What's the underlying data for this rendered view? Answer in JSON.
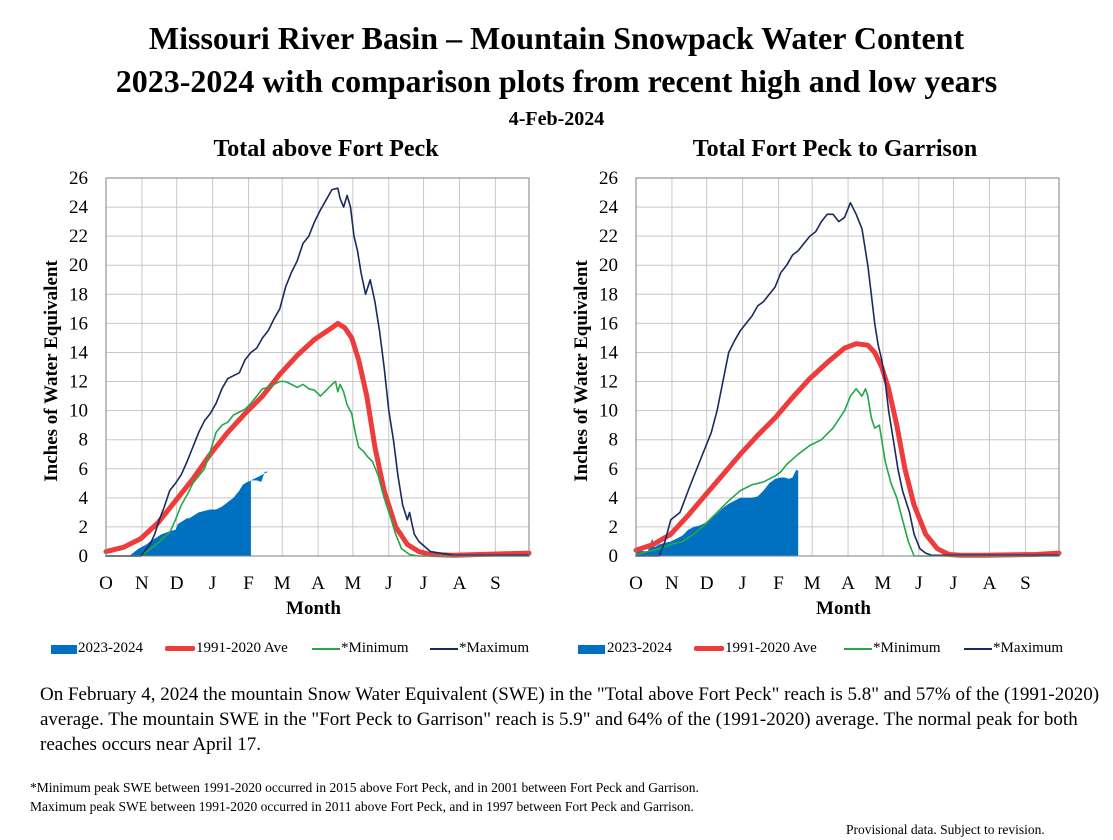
{
  "header": {
    "title_line1": "Missouri River Basin – Mountain Snowpack Water Content",
    "title_line2": "2023-2024 with comparison plots from recent high and low years",
    "date": "4-Feb-2024"
  },
  "colors": {
    "current": "#0070C0",
    "average": "#EE3B3B",
    "minimum": "#22A84A",
    "maximum": "#1A2A5E",
    "grid": "#C8C8C8"
  },
  "chart_data": [
    {
      "type": "line",
      "title": "Total above Fort Peck",
      "xlabel": "Month",
      "ylabel": "Inches of Water Equivalent",
      "x_unit": "days since Oct 1",
      "xlim": [
        0,
        365
      ],
      "ylim": [
        0,
        26
      ],
      "yticks": [
        "0",
        "2",
        "4",
        "6",
        "8",
        "10",
        "12",
        "14",
        "16",
        "18",
        "20",
        "22",
        "24",
        "26"
      ],
      "xticks": [
        "O",
        "N",
        "D",
        "J",
        "F",
        "M",
        "A",
        "M",
        "J",
        "J",
        "A",
        "S"
      ],
      "grid": true,
      "legend_position": "bottom",
      "series": [
        {
          "name": "2023-2024",
          "kind": "area",
          "x": [
            0,
            20,
            28,
            35,
            38,
            42,
            48,
            55,
            60,
            62,
            66,
            70,
            72,
            76,
            80,
            85,
            90,
            95,
            100,
            110,
            115,
            118,
            122,
            126,
            130,
            134,
            137,
            140,
            125
          ],
          "y": [
            0,
            0,
            0.5,
            0.8,
            1.0,
            1.2,
            1.5,
            1.7,
            1.8,
            2.2,
            2.4,
            2.6,
            2.6,
            2.8,
            3.0,
            3.1,
            3.2,
            3.2,
            3.4,
            4.0,
            4.5,
            4.9,
            5.1,
            5.2,
            5.2,
            5.1,
            5.8,
            5.8,
            5.2
          ]
        },
        {
          "name": "1991-2020 Ave",
          "kind": "line",
          "x": [
            0,
            15,
            30,
            45,
            60,
            75,
            90,
            105,
            120,
            135,
            150,
            165,
            180,
            195,
            200,
            206,
            212,
            218,
            225,
            232,
            240,
            250,
            260,
            270,
            280,
            300,
            365
          ],
          "y": [
            0.3,
            0.6,
            1.2,
            2.3,
            3.8,
            5.3,
            7.0,
            8.5,
            9.8,
            11.0,
            12.5,
            13.8,
            14.9,
            15.7,
            16.0,
            15.7,
            15.0,
            13.5,
            11.0,
            7.5,
            4.5,
            2.0,
            0.8,
            0.3,
            0.1,
            0.05,
            0.2
          ]
        },
        {
          "name": "*Minimum",
          "kind": "line",
          "x": [
            0,
            30,
            40,
            45,
            50,
            55,
            60,
            65,
            70,
            75,
            80,
            85,
            90,
            95,
            100,
            105,
            110,
            115,
            120,
            125,
            130,
            135,
            140,
            145,
            150,
            155,
            160,
            165,
            170,
            175,
            180,
            185,
            190,
            195,
            198,
            200,
            202,
            205,
            208,
            212,
            215,
            218,
            222,
            226,
            230,
            235,
            240,
            245,
            250,
            255,
            262,
            270,
            300,
            365
          ],
          "y": [
            0,
            0,
            0.6,
            0.9,
            1.3,
            1.6,
            2.5,
            3.5,
            4.2,
            5.0,
            5.5,
            6.0,
            7.2,
            8.5,
            9.0,
            9.2,
            9.7,
            9.9,
            10.1,
            10.5,
            11.0,
            11.5,
            11.6,
            11.8,
            12.0,
            12.0,
            11.8,
            11.6,
            11.8,
            11.5,
            11.4,
            11.0,
            11.4,
            11.8,
            12.0,
            11.3,
            11.8,
            11.3,
            10.4,
            9.8,
            8.5,
            7.5,
            7.2,
            6.8,
            6.5,
            5.5,
            4.0,
            2.8,
            1.5,
            0.5,
            0.1,
            0,
            0,
            0
          ]
        },
        {
          "name": "*Maximum",
          "kind": "line",
          "x": [
            0,
            30,
            38,
            42,
            46,
            50,
            55,
            60,
            65,
            70,
            75,
            80,
            85,
            90,
            95,
            100,
            105,
            110,
            115,
            120,
            125,
            130,
            135,
            140,
            145,
            150,
            155,
            160,
            165,
            170,
            175,
            180,
            185,
            190,
            195,
            200,
            202,
            205,
            208,
            211,
            214,
            217,
            220,
            224,
            228,
            232,
            236,
            240,
            244,
            248,
            252,
            256,
            260,
            262,
            264,
            266,
            270,
            280,
            300,
            365
          ],
          "y": [
            0,
            0,
            0.8,
            1.5,
            2.5,
            3.3,
            4.5,
            5.0,
            5.6,
            6.5,
            7.5,
            8.5,
            9.3,
            9.8,
            10.5,
            11.5,
            12.2,
            12.4,
            12.6,
            13.5,
            14.0,
            14.3,
            15.0,
            15.5,
            16.3,
            17.0,
            18.5,
            19.5,
            20.3,
            21.5,
            22.0,
            23.0,
            23.8,
            24.5,
            25.2,
            25.3,
            24.6,
            24.0,
            24.8,
            24.0,
            22.0,
            21.0,
            19.5,
            18.0,
            19.0,
            17.5,
            15.5,
            13.0,
            10.0,
            8.0,
            5.5,
            3.5,
            2.5,
            3.0,
            2.2,
            1.5,
            1.0,
            0.3,
            0.05,
            0.05
          ]
        }
      ]
    },
    {
      "type": "line",
      "title": "Total Fort Peck to Garrison",
      "xlabel": "Month",
      "ylabel": "Inches of Water Equivalent",
      "x_unit": "days since Oct 1",
      "xlim": [
        0,
        365
      ],
      "ylim": [
        0,
        26
      ],
      "yticks": [
        "0",
        "2",
        "4",
        "6",
        "8",
        "10",
        "12",
        "14",
        "16",
        "18",
        "20",
        "22",
        "24",
        "26"
      ],
      "xticks": [
        "O",
        "N",
        "D",
        "J",
        "F",
        "M",
        "A",
        "M",
        "J",
        "J",
        "A",
        "S"
      ],
      "grid": true,
      "legend_position": "bottom",
      "series": [
        {
          "name": "2023-2024",
          "kind": "area",
          "x": [
            0,
            10,
            14,
            16,
            20,
            25,
            30,
            35,
            40,
            45,
            50,
            55,
            60,
            65,
            70,
            75,
            80,
            85,
            90,
            95,
            100,
            105,
            110,
            115,
            120,
            125,
            128,
            132,
            135,
            138,
            140
          ],
          "y": [
            0.4,
            0.3,
            1.2,
            0.6,
            0.8,
            0.9,
            1.0,
            1.2,
            1.4,
            1.8,
            2.0,
            2.1,
            2.3,
            2.6,
            2.9,
            3.3,
            3.6,
            3.8,
            4.0,
            4.0,
            4.0,
            4.1,
            4.5,
            5.0,
            5.3,
            5.4,
            5.4,
            5.3,
            5.4,
            5.9,
            5.9
          ]
        },
        {
          "name": "1991-2020 Ave",
          "kind": "line",
          "x": [
            0,
            15,
            30,
            45,
            60,
            75,
            90,
            105,
            120,
            135,
            150,
            165,
            180,
            190,
            200,
            206,
            212,
            218,
            225,
            232,
            240,
            250,
            260,
            270,
            280,
            300,
            345,
            365
          ],
          "y": [
            0.4,
            0.8,
            1.5,
            2.8,
            4.2,
            5.6,
            7.0,
            8.3,
            9.5,
            10.9,
            12.2,
            13.3,
            14.3,
            14.6,
            14.5,
            14.0,
            13.0,
            11.5,
            9.0,
            6.0,
            3.5,
            1.5,
            0.5,
            0.1,
            0.05,
            0.05,
            0.1,
            0.2
          ]
        },
        {
          "name": "*Minimum",
          "kind": "line",
          "x": [
            0,
            20,
            30,
            40,
            50,
            60,
            70,
            80,
            90,
            100,
            110,
            115,
            120,
            125,
            130,
            140,
            150,
            160,
            170,
            180,
            185,
            190,
            195,
            198,
            200,
            203,
            206,
            210,
            215,
            220,
            225,
            230,
            235,
            240,
            245,
            250,
            365
          ],
          "y": [
            0.1,
            0.5,
            0.8,
            1.0,
            1.5,
            2.2,
            3.0,
            3.8,
            4.5,
            4.9,
            5.1,
            5.3,
            5.5,
            5.8,
            6.3,
            7.0,
            7.6,
            8.0,
            8.8,
            10.0,
            11.0,
            11.5,
            11.0,
            11.5,
            11.0,
            9.5,
            8.8,
            9.0,
            6.5,
            5.0,
            4.0,
            2.5,
            1.0,
            0,
            0,
            0,
            0
          ]
        },
        {
          "name": "*Maximum",
          "kind": "line",
          "x": [
            0,
            20,
            25,
            30,
            38,
            45,
            50,
            55,
            60,
            65,
            70,
            75,
            80,
            85,
            90,
            95,
            100,
            105,
            110,
            115,
            120,
            125,
            130,
            135,
            140,
            145,
            150,
            155,
            160,
            165,
            170,
            175,
            180,
            185,
            190,
            195,
            200,
            203,
            206,
            209,
            212,
            215,
            218,
            222,
            226,
            230,
            236,
            240,
            245,
            250,
            255,
            260,
            270,
            300,
            365
          ],
          "y": [
            0,
            0,
            1.0,
            2.5,
            3.0,
            4.5,
            5.5,
            6.5,
            7.5,
            8.5,
            10.0,
            12.0,
            14.0,
            14.8,
            15.5,
            16.0,
            16.5,
            17.2,
            17.5,
            18.0,
            18.5,
            19.5,
            20.0,
            20.7,
            21.0,
            21.5,
            22.0,
            22.3,
            23.0,
            23.5,
            23.5,
            23.0,
            23.3,
            24.3,
            23.5,
            22.5,
            20.0,
            18.0,
            16.0,
            14.5,
            13.5,
            12.0,
            10.0,
            8.0,
            6.0,
            4.5,
            3.0,
            1.5,
            0.5,
            0.2,
            0.05,
            0.05,
            0.05,
            0.05,
            0.05
          ]
        }
      ]
    }
  ],
  "legend": {
    "current": "2023-2024",
    "average": "1991-2020 Ave",
    "minimum": "*Minimum",
    "maximum": "*Maximum"
  },
  "summary": "On February 4, 2024 the mountain Snow Water Equivalent (SWE) in the \"Total above Fort Peck\" reach is 5.8\" and 57% of the (1991-2020) average. The mountain SWE in the \"Fort Peck to Garrison\" reach is 5.9\" and 64% of the (1991-2020) average. The normal peak for both reaches occurs near April 17.",
  "notes": {
    "minimum": "*Minimum peak SWE between 1991-2020 occurred in 2015 above Fort Peck, and in 2001 between Fort Peck and Garrison.",
    "maximum": "Maximum peak SWE between 1991-2020 occurred in 2011 above Fort Peck, and in 1997 between Fort Peck and Garrison."
  },
  "provisional": "Provisional data. Subject to revision."
}
